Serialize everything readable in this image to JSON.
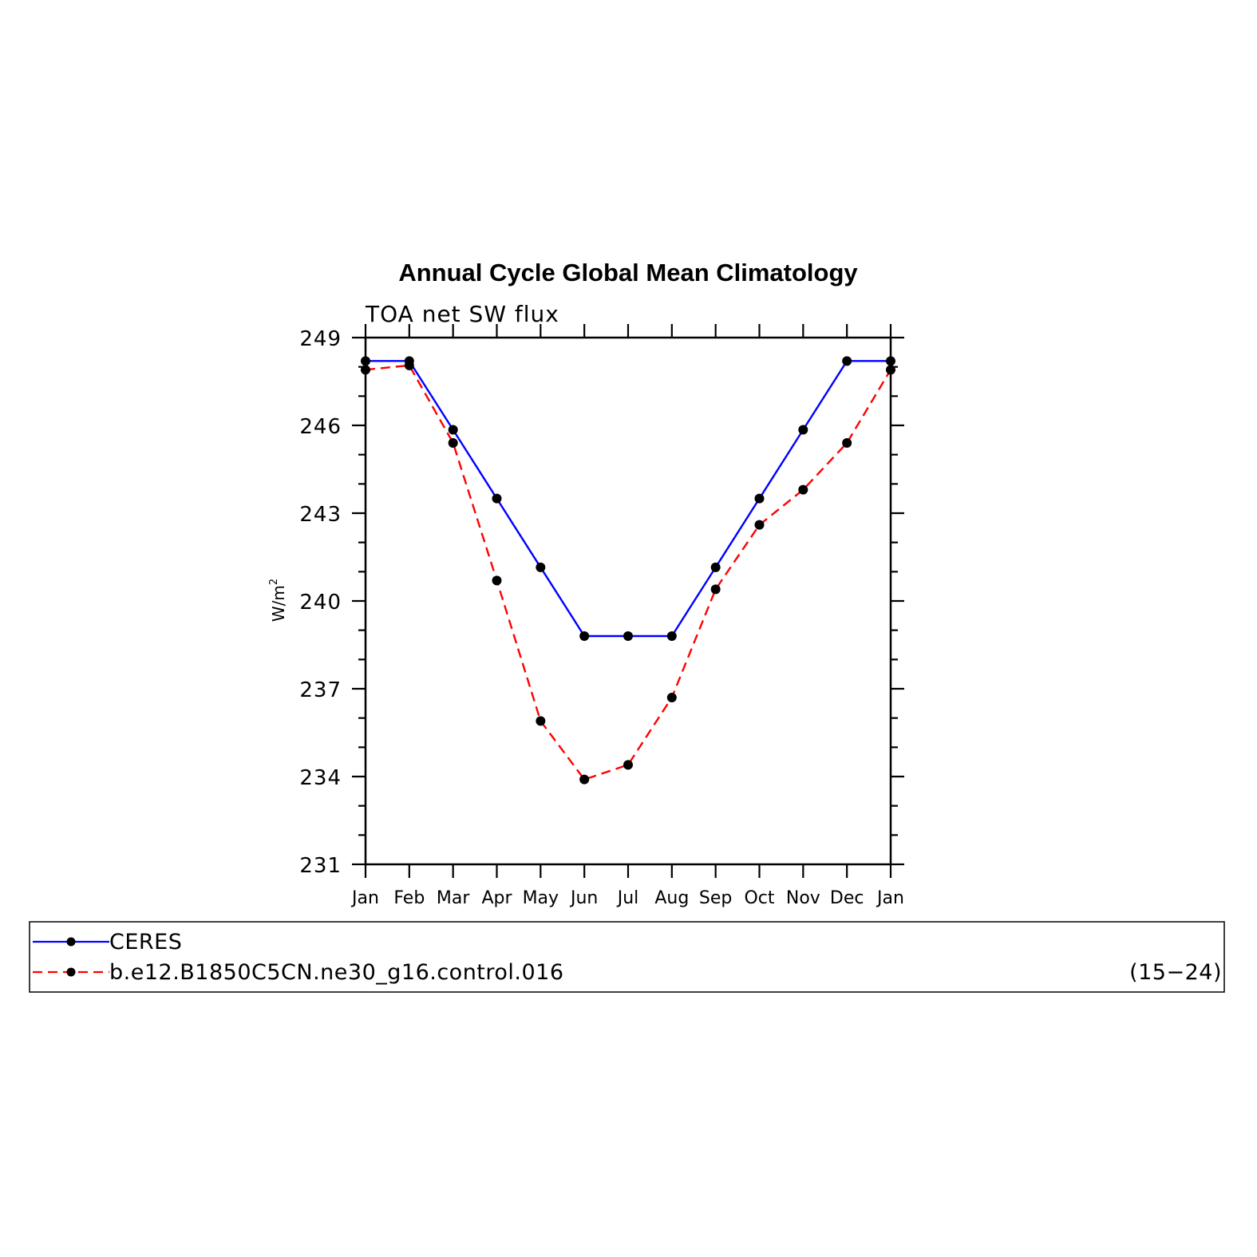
{
  "chart_data": {
    "type": "line",
    "title": "Annual Cycle Global Mean Climatology",
    "subtitle": "TOA net SW flux",
    "ylabel": "W/m²",
    "ylabel_base": "W/m",
    "ylabel_sup": "2",
    "xlabel": "",
    "categories": [
      "Jan",
      "Feb",
      "Mar",
      "Apr",
      "May",
      "Jun",
      "Jul",
      "Aug",
      "Sep",
      "Oct",
      "Nov",
      "Dec",
      "Jan"
    ],
    "ylim": [
      231,
      249
    ],
    "yticks": [
      231,
      234,
      237,
      240,
      243,
      246,
      249
    ],
    "yticks_labels": [
      "231",
      "234",
      "237",
      "240",
      "243",
      "246",
      "249"
    ],
    "grid": false,
    "legend_position": "bottom",
    "series": [
      {
        "name": "CERES",
        "color": "#0000ff",
        "style": "solid",
        "marker": "filled-circle",
        "values": [
          248.2,
          248.2,
          245.85,
          243.5,
          241.15,
          238.8,
          238.8,
          238.8,
          241.15,
          243.5,
          245.85,
          248.2,
          248.2
        ]
      },
      {
        "name": "b.e12.B1850C5CN.ne30_g16.control.016",
        "color": "#ff0000",
        "style": "dashed",
        "marker": "filled-circle",
        "values": [
          247.9,
          248.05,
          245.4,
          240.7,
          235.9,
          233.9,
          234.4,
          236.7,
          240.4,
          242.6,
          243.8,
          245.4,
          247.9
        ]
      }
    ],
    "legend": {
      "entries": [
        "CERES",
        "b.e12.B1850C5CN.ne30_g16.control.016"
      ],
      "years_note": "(15−24)"
    }
  }
}
